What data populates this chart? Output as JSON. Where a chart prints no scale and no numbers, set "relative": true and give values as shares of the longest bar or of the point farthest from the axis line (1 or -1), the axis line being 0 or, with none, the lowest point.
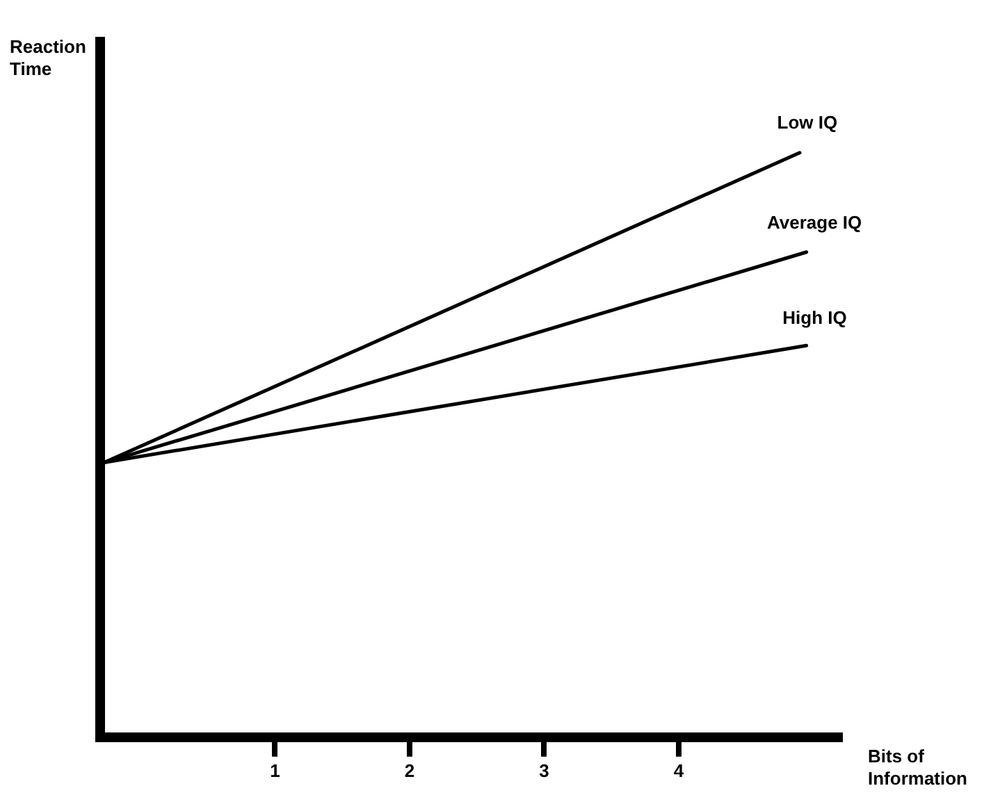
{
  "chart_data": {
    "type": "line",
    "xlabel": "Bits of Information",
    "ylabel": "Reaction Time",
    "relative": true,
    "xlim": [
      -0.3,
      5.2
    ],
    "xticks": [
      1,
      2,
      3,
      4
    ],
    "grid": false,
    "legend": false,
    "marker": "none",
    "line_style": "solid",
    "series": [
      {
        "name": "Low IQ",
        "color": "#000000",
        "x": [
          -0.27,
          4.9
        ],
        "values": [
          0.47,
          1
        ]
      },
      {
        "name": "Average IQ",
        "color": "#000000",
        "x": [
          -0.27,
          4.95
        ],
        "values": [
          0.47,
          0.83
        ]
      },
      {
        "name": "High IQ",
        "color": "#000000",
        "x": [
          -0.27,
          4.95
        ],
        "values": [
          0.47,
          0.67
        ]
      }
    ]
  }
}
